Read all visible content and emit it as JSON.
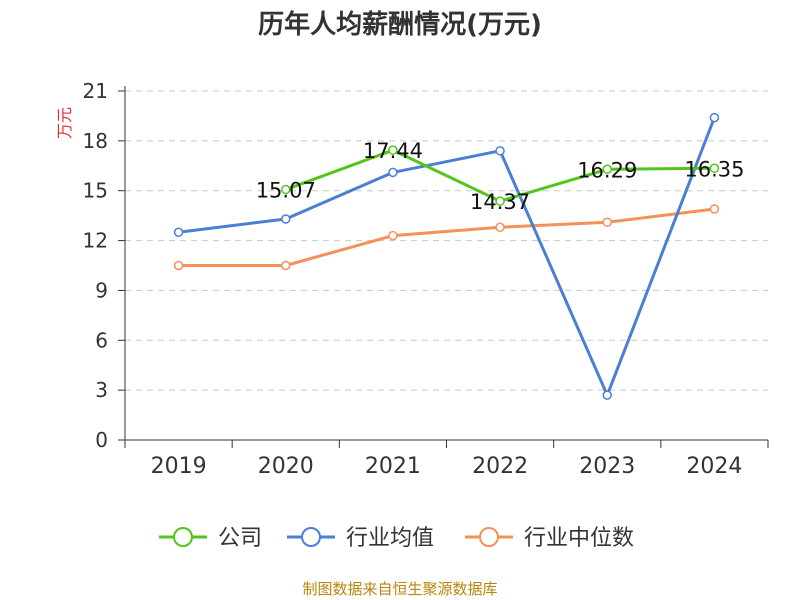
{
  "chart_data": {
    "type": "line",
    "title": "历年人均薪酬情况(万元)",
    "ylabel": "万元",
    "xlabel": "",
    "categories": [
      "2019",
      "2020",
      "2021",
      "2022",
      "2023",
      "2024"
    ],
    "ylim": [
      0,
      21
    ],
    "yticks": [
      0,
      3,
      6,
      9,
      12,
      15,
      18,
      21
    ],
    "grid": true,
    "legend_position": "bottom",
    "series": [
      {
        "name": "公司",
        "color": "#52c41a",
        "values": [
          null,
          15.07,
          17.44,
          14.37,
          16.29,
          16.35
        ],
        "labels": [
          null,
          "15.07",
          "17.44",
          "14.37",
          "16.29",
          "16.35"
        ]
      },
      {
        "name": "行业均值",
        "color": "#4a7fd4",
        "values": [
          12.5,
          13.3,
          16.1,
          17.4,
          2.7,
          19.4
        ]
      },
      {
        "name": "行业中位数",
        "color": "#f5905a",
        "values": [
          10.5,
          10.5,
          12.3,
          12.8,
          13.1,
          13.9
        ]
      }
    ]
  },
  "source": "制图数据来自恒生聚源数据库"
}
